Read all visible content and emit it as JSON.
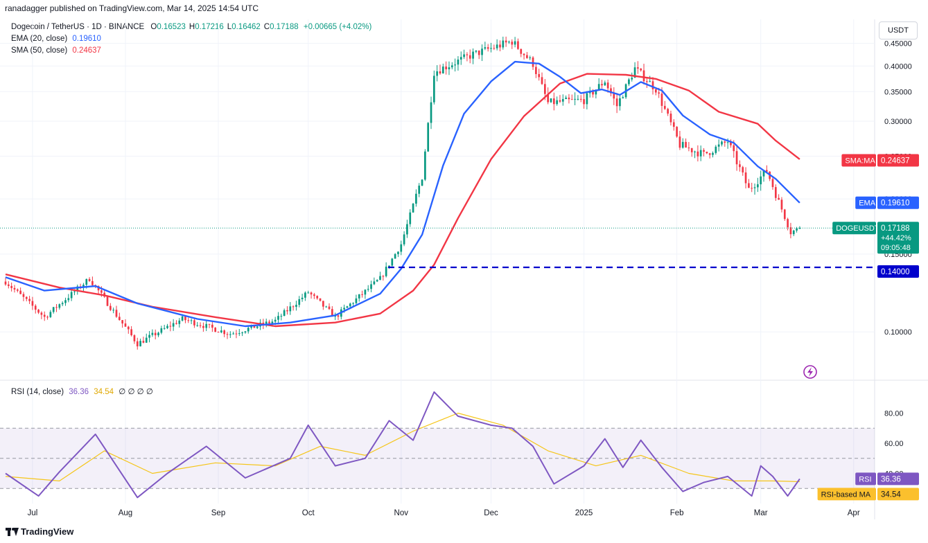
{
  "header": {
    "published": "ranadagger published on TradingView.com, Mar 14, 2025 14:54 UTC",
    "symbol": "Dogecoin / TetherUS · 1D · BINANCE",
    "ohlc": [
      {
        "k": "O",
        "v": "0.16523"
      },
      {
        "k": "H",
        "v": "0.17216"
      },
      {
        "k": "L",
        "v": "0.16462"
      },
      {
        "k": "C",
        "v": "0.17188"
      }
    ],
    "change": "+0.00665 (+4.02%)",
    "ema_label": "EMA (20, close)",
    "ema_value": "0.19610",
    "sma_label": "SMA (50, close)",
    "sma_value": "0.24637",
    "rsi_label": "RSI (14, close)",
    "rsi_value": "36.36",
    "rsi_ma_value": "34.54",
    "rsi_extra": "∅ ∅ ∅ ∅",
    "currency": "USDT"
  },
  "footer": {
    "brand": "TradingView",
    "logo": "tradingview-logo-icon"
  },
  "badges": {
    "sma": {
      "label": "SMA:MA",
      "value": "0.24637",
      "color": "#f23645"
    },
    "ema": {
      "label": "EMA",
      "value": "0.19610",
      "color": "#2962ff"
    },
    "price": {
      "label": "DOGEUSDT",
      "value": "0.17188",
      "change": "+44.42%",
      "timer": "09:05:48",
      "color": "#089981"
    },
    "support": {
      "value": "0.14000",
      "color": "#0000cc"
    },
    "rsi": {
      "label": "RSI",
      "value": "36.36",
      "color": "#7e57c2"
    },
    "rsi_ma": {
      "label": "RSI-based MA",
      "value": "34.54",
      "color": "#fbc02d"
    }
  },
  "colors": {
    "up": "#089981",
    "down": "#f23645",
    "ema": "#2962ff",
    "sma": "#f23645",
    "rsi": "#7e57c2",
    "rsi_ma": "#f5c518",
    "support": "#0000cc"
  },
  "chart_data": [
    {
      "type": "candlestick",
      "title": "Dogecoin / TetherUS · 1D · BINANCE",
      "scale": "log",
      "ylim": [
        0.078,
        0.51
      ],
      "yticks": [
        "0.45000",
        "0.40000",
        "0.35000",
        "0.30000",
        "0.25000",
        "0.20000",
        "0.15000",
        "0.10000"
      ],
      "x_labels": [
        "Jul",
        "Aug",
        "Sep",
        "Oct",
        "Nov",
        "Dec",
        "2025",
        "Feb",
        "Mar",
        "Apr"
      ],
      "x_range": [
        "2024-06-22",
        "2025-04-08"
      ],
      "support_level": 0.14,
      "series": [
        {
          "name": "EMA (20, close)",
          "color": "#2962ff",
          "points": [
            [
              "2024-06-22",
              0.133
            ],
            [
              "2024-07-05",
              0.124
            ],
            [
              "2024-07-22",
              0.127
            ],
            [
              "2024-08-05",
              0.116
            ],
            [
              "2024-08-25",
              0.107
            ],
            [
              "2024-09-10",
              0.103
            ],
            [
              "2024-09-25",
              0.105
            ],
            [
              "2024-10-10",
              0.109
            ],
            [
              "2024-10-25",
              0.122
            ],
            [
              "2024-11-01",
              0.139
            ],
            [
              "2024-11-08",
              0.166
            ],
            [
              "2024-11-15",
              0.238
            ],
            [
              "2024-11-22",
              0.312
            ],
            [
              "2024-12-01",
              0.369
            ],
            [
              "2024-12-09",
              0.409
            ],
            [
              "2024-12-17",
              0.405
            ],
            [
              "2024-12-24",
              0.378
            ],
            [
              "2024-12-31",
              0.347
            ],
            [
              "2025-01-07",
              0.354
            ],
            [
              "2025-01-13",
              0.344
            ],
            [
              "2025-01-20",
              0.368
            ],
            [
              "2025-01-27",
              0.352
            ],
            [
              "2025-02-03",
              0.309
            ],
            [
              "2025-02-12",
              0.28
            ],
            [
              "2025-02-20",
              0.268
            ],
            [
              "2025-02-28",
              0.237
            ],
            [
              "2025-03-06",
              0.222
            ],
            [
              "2025-03-14",
              0.196
            ]
          ]
        },
        {
          "name": "SMA (50, close)",
          "color": "#f23645",
          "points": [
            [
              "2024-06-22",
              0.135
            ],
            [
              "2024-07-10",
              0.126
            ],
            [
              "2024-07-25",
              0.121
            ],
            [
              "2024-08-10",
              0.114
            ],
            [
              "2024-08-31",
              0.108
            ],
            [
              "2024-09-20",
              0.103
            ],
            [
              "2024-10-10",
              0.105
            ],
            [
              "2024-10-25",
              0.11
            ],
            [
              "2024-11-05",
              0.124
            ],
            [
              "2024-11-12",
              0.142
            ],
            [
              "2024-11-20",
              0.181
            ],
            [
              "2024-12-01",
              0.246
            ],
            [
              "2024-12-12",
              0.308
            ],
            [
              "2024-12-24",
              0.365
            ],
            [
              "2025-01-02",
              0.384
            ],
            [
              "2025-01-15",
              0.382
            ],
            [
              "2025-01-25",
              0.374
            ],
            [
              "2025-02-05",
              0.352
            ],
            [
              "2025-02-15",
              0.315
            ],
            [
              "2025-02-28",
              0.296
            ],
            [
              "2025-03-06",
              0.271
            ],
            [
              "2025-03-14",
              0.246
            ]
          ]
        }
      ],
      "candles_generated": true,
      "price_path": [
        [
          "2024-06-22",
          0.13
        ],
        [
          "2024-07-05",
          0.108
        ],
        [
          "2024-07-20",
          0.132
        ],
        [
          "2024-08-05",
          0.094
        ],
        [
          "2024-08-20",
          0.107
        ],
        [
          "2024-09-05",
          0.099
        ],
        [
          "2024-09-20",
          0.106
        ],
        [
          "2024-10-01",
          0.123
        ],
        [
          "2024-10-10",
          0.108
        ],
        [
          "2024-10-25",
          0.132
        ],
        [
          "2024-11-01",
          0.158
        ],
        [
          "2024-11-08",
          0.225
        ],
        [
          "2024-11-12",
          0.388
        ],
        [
          "2024-11-25",
          0.425
        ],
        [
          "2024-12-08",
          0.455
        ],
        [
          "2024-12-15",
          0.405
        ],
        [
          "2024-12-20",
          0.33
        ],
        [
          "2025-01-01",
          0.335
        ],
        [
          "2025-01-08",
          0.37
        ],
        [
          "2025-01-12",
          0.325
        ],
        [
          "2025-01-18",
          0.395
        ],
        [
          "2025-01-25",
          0.355
        ],
        [
          "2025-02-02",
          0.265
        ],
        [
          "2025-02-10",
          0.252
        ],
        [
          "2025-02-18",
          0.27
        ],
        [
          "2025-02-25",
          0.21
        ],
        [
          "2025-03-03",
          0.232
        ],
        [
          "2025-03-11",
          0.168
        ],
        [
          "2025-03-14",
          0.172
        ]
      ]
    },
    {
      "type": "line",
      "title": "RSI (14, close)",
      "ylim": [
        20,
        100
      ],
      "yticks": [
        "80.00",
        "60.00",
        "40.00"
      ],
      "bands": [
        30,
        50,
        70
      ],
      "series": [
        {
          "name": "RSI",
          "color": "#7e57c2",
          "points": [
            [
              "2024-06-22",
              40
            ],
            [
              "2024-07-03",
              25
            ],
            [
              "2024-07-10",
              41
            ],
            [
              "2024-07-22",
              66
            ],
            [
              "2024-08-05",
              24
            ],
            [
              "2024-08-15",
              40
            ],
            [
              "2024-08-28",
              58
            ],
            [
              "2024-09-10",
              37
            ],
            [
              "2024-09-25",
              50
            ],
            [
              "2024-10-01",
              72
            ],
            [
              "2024-10-10",
              45
            ],
            [
              "2024-10-20",
              50
            ],
            [
              "2024-10-28",
              75
            ],
            [
              "2024-11-05",
              62
            ],
            [
              "2024-11-12",
              94
            ],
            [
              "2024-11-20",
              78
            ],
            [
              "2024-12-01",
              72
            ],
            [
              "2024-12-08",
              70
            ],
            [
              "2024-12-15",
              58
            ],
            [
              "2024-12-22",
              33
            ],
            [
              "2025-01-01",
              45
            ],
            [
              "2025-01-08",
              63
            ],
            [
              "2025-01-14",
              44
            ],
            [
              "2025-01-20",
              62
            ],
            [
              "2025-01-27",
              44
            ],
            [
              "2025-02-03",
              28
            ],
            [
              "2025-02-10",
              34
            ],
            [
              "2025-02-18",
              38
            ],
            [
              "2025-02-26",
              25
            ],
            [
              "2025-03-01",
              45
            ],
            [
              "2025-03-05",
              38
            ],
            [
              "2025-03-10",
              25
            ],
            [
              "2025-03-14",
              36.36
            ]
          ]
        },
        {
          "name": "RSI-based MA",
          "color": "#f5c518",
          "points": [
            [
              "2024-06-22",
              38
            ],
            [
              "2024-07-10",
              35
            ],
            [
              "2024-07-25",
              55
            ],
            [
              "2024-08-10",
              40
            ],
            [
              "2024-08-31",
              47
            ],
            [
              "2024-09-20",
              45
            ],
            [
              "2024-10-05",
              58
            ],
            [
              "2024-10-20",
              52
            ],
            [
              "2024-11-05",
              68
            ],
            [
              "2024-11-20",
              80
            ],
            [
              "2024-12-05",
              72
            ],
            [
              "2024-12-20",
              55
            ],
            [
              "2025-01-05",
              45
            ],
            [
              "2025-01-20",
              52
            ],
            [
              "2025-02-05",
              40
            ],
            [
              "2025-02-20",
              35
            ],
            [
              "2025-03-05",
              35
            ],
            [
              "2025-03-14",
              34.54
            ]
          ]
        }
      ]
    }
  ]
}
